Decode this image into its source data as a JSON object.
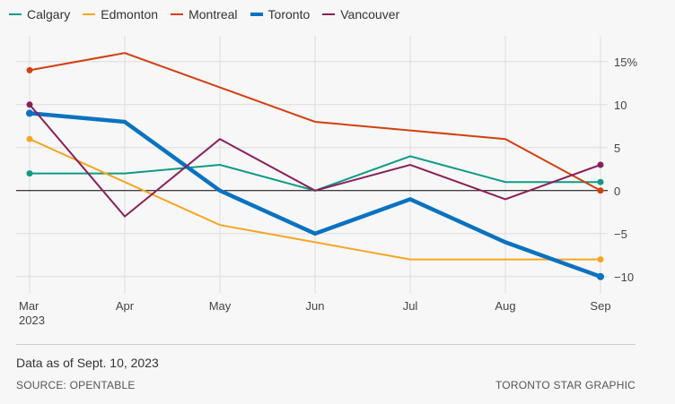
{
  "chart_data": {
    "type": "line",
    "categories": [
      "Mar",
      "Apr",
      "May",
      "Jun",
      "Jul",
      "Aug",
      "Sep"
    ],
    "first_category_sublabel": "2023",
    "ylim": [
      -12,
      18
    ],
    "yticks": [
      -10,
      -5,
      0,
      5,
      10,
      15
    ],
    "ytick_labels": [
      "−10",
      "−5",
      "0",
      "5",
      "10",
      "15%"
    ],
    "grid": true,
    "legend_position": "top-left",
    "series": [
      {
        "name": "Calgary",
        "color": "#0f9a84",
        "values": [
          2,
          2,
          3,
          0,
          4,
          1,
          1
        ]
      },
      {
        "name": "Edmonton",
        "color": "#f5a623",
        "values": [
          6,
          1,
          -4,
          -6,
          -8,
          -8,
          -8
        ]
      },
      {
        "name": "Montreal",
        "color": "#d2400f",
        "values": [
          14,
          16,
          12,
          8,
          7,
          6,
          0
        ]
      },
      {
        "name": "Toronto",
        "color": "#0a72c0",
        "values": [
          9,
          8,
          0,
          -5,
          -1,
          -6,
          -10
        ],
        "emphasis": true
      },
      {
        "name": "Vancouver",
        "color": "#8a1f5a",
        "values": [
          10,
          -3,
          6,
          0,
          3,
          -1,
          3
        ]
      }
    ]
  },
  "footer": {
    "note": "Data as of Sept. 10, 2023",
    "source": "SOURCE: OPENTABLE",
    "credit": "TORONTO STAR GRAPHIC"
  }
}
